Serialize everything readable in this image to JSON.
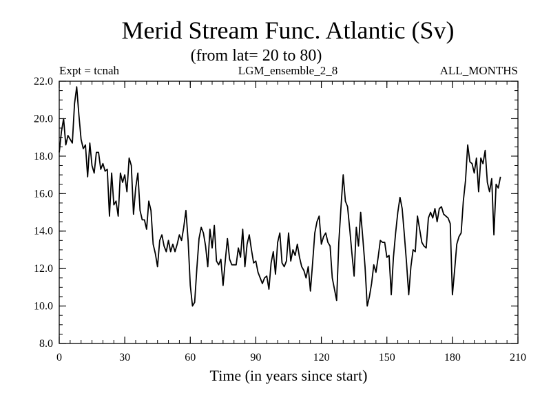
{
  "chart_data": {
    "type": "line",
    "title": "Merid Stream Func. Atlantic (Sv)",
    "subtitle": "(from lat= 20 to 80)",
    "header_left": "Expt = tcnah",
    "header_center": "LGM_ensemble_2_8",
    "header_right": "ALL_MONTHS",
    "xlabel": "Time (in years since start)",
    "ylabel": "",
    "xlim": [
      0,
      210
    ],
    "ylim": [
      8.0,
      22.0
    ],
    "xticks": [
      0,
      30,
      60,
      90,
      120,
      150,
      180,
      210
    ],
    "yticks": [
      "8.0",
      "10.0",
      "12.0",
      "14.0",
      "16.0",
      "18.0",
      "20.0",
      "22.0"
    ],
    "x_minor_step": 5,
    "y_minor_step": 0.5,
    "grid": false,
    "series": [
      {
        "name": "Merid Stream Func. Atlantic",
        "x_start": 0,
        "x_step": 1,
        "values": [
          18.2,
          19.3,
          20.0,
          18.6,
          19.1,
          18.9,
          18.7,
          20.8,
          21.7,
          20.2,
          18.9,
          18.4,
          18.6,
          16.9,
          18.7,
          17.5,
          17.1,
          18.2,
          18.2,
          17.3,
          17.6,
          17.2,
          17.3,
          14.8,
          17.1,
          15.4,
          15.6,
          14.8,
          17.1,
          16.6,
          17.0,
          16.1,
          17.9,
          17.5,
          14.9,
          16.3,
          17.1,
          15.1,
          14.6,
          14.6,
          14.1,
          15.6,
          15.1,
          13.3,
          12.8,
          12.1,
          13.5,
          13.8,
          13.2,
          12.9,
          13.5,
          12.9,
          13.3,
          12.9,
          13.3,
          13.8,
          13.5,
          14.2,
          15.1,
          13.5,
          11.1,
          10.0,
          10.2,
          12.0,
          13.6,
          14.2,
          13.9,
          13.2,
          12.1,
          14.1,
          13.1,
          14.3,
          12.4,
          12.2,
          12.5,
          11.1,
          12.4,
          13.6,
          12.5,
          12.2,
          12.2,
          12.2,
          13.1,
          12.6,
          14.1,
          12.1,
          13.3,
          13.8,
          13.0,
          12.3,
          12.4,
          11.8,
          11.5,
          11.2,
          11.5,
          11.6,
          10.9,
          12.3,
          12.9,
          11.7,
          13.4,
          13.9,
          12.3,
          12.1,
          12.4,
          13.9,
          12.4,
          13.0,
          12.7,
          13.3,
          12.6,
          12.1,
          11.9,
          11.5,
          12.1,
          10.8,
          12.3,
          13.9,
          14.5,
          14.8,
          13.3,
          13.7,
          13.9,
          13.4,
          13.2,
          11.5,
          10.9,
          10.3,
          13.4,
          15.3,
          17.0,
          15.6,
          15.3,
          14.1,
          12.8,
          11.6,
          14.2,
          13.2,
          15.0,
          13.6,
          12.1,
          10.0,
          10.5,
          11.2,
          12.2,
          11.8,
          12.6,
          13.5,
          13.4,
          13.4,
          12.6,
          12.7,
          10.6,
          12.6,
          13.9,
          15.0,
          15.8,
          15.2,
          13.8,
          12.3,
          10.6,
          12.1,
          13.0,
          12.9,
          14.8,
          14.1,
          13.4,
          13.2,
          13.1,
          14.7,
          15.0,
          14.7,
          15.2,
          14.5,
          15.2,
          15.3,
          14.9,
          14.8,
          14.7,
          14.4,
          10.6,
          11.9,
          13.3,
          13.7,
          13.9,
          15.6,
          16.7,
          18.6,
          17.7,
          17.6,
          17.1,
          17.9,
          16.1,
          17.9,
          17.6,
          18.3,
          16.6,
          16.1,
          16.8,
          13.8,
          16.5,
          16.3,
          16.9
        ]
      }
    ]
  }
}
